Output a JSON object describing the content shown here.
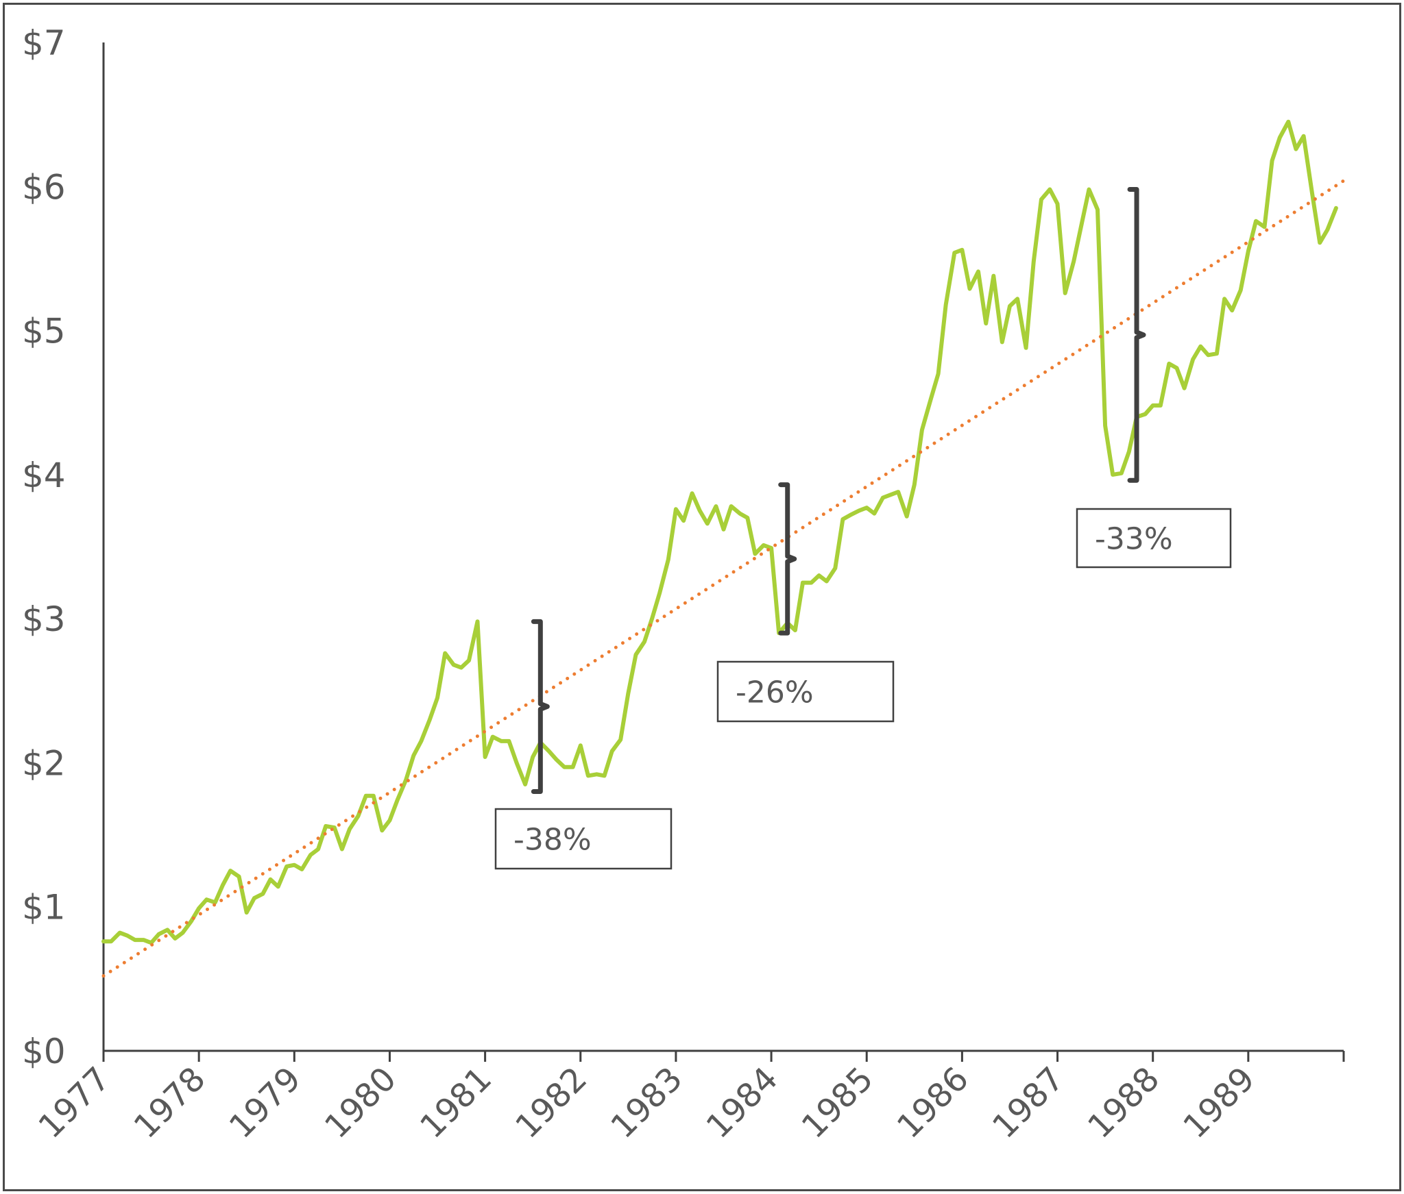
{
  "chart_data": {
    "type": "line",
    "title": "",
    "xlabel": "",
    "ylabel": "",
    "xlim": [
      1977.0,
      1990.0
    ],
    "ylim": [
      0,
      7
    ],
    "y_ticks": [
      "$0",
      "$1",
      "$2",
      "$3",
      "$4",
      "$5",
      "$6",
      "$7"
    ],
    "x_ticks": [
      "1977",
      "1978",
      "1979",
      "1980",
      "1981",
      "1982",
      "1983",
      "1984",
      "1985",
      "1986",
      "1987",
      "1988",
      "1989"
    ],
    "grid": false,
    "colors": {
      "price": "#a8cf38",
      "trend": "#ed7d31",
      "annotation": "#404040"
    },
    "series": [
      {
        "type": "line",
        "x": [
          1977.0,
          1977.08,
          1977.17,
          1977.25,
          1977.33,
          1977.42,
          1977.5,
          1977.58,
          1977.67,
          1977.75,
          1977.83,
          1977.92,
          1978.0,
          1978.08,
          1978.17,
          1978.25,
          1978.33,
          1978.42,
          1978.5,
          1978.58,
          1978.67,
          1978.75,
          1978.83,
          1978.92,
          1979.0,
          1979.08,
          1979.17,
          1979.25,
          1979.33,
          1979.42,
          1979.5,
          1979.58,
          1979.67,
          1979.75,
          1979.83,
          1979.92,
          1980.0,
          1980.08,
          1980.17,
          1980.25,
          1980.33,
          1980.42,
          1980.5,
          1980.58,
          1980.67,
          1980.75,
          1980.83,
          1980.92,
          1981.0,
          1981.08,
          1981.17,
          1981.25,
          1981.33,
          1981.42,
          1981.5,
          1981.58,
          1981.67,
          1981.75,
          1981.83,
          1981.92,
          1982.0,
          1982.08,
          1982.17,
          1982.25,
          1982.33,
          1982.42,
          1982.5,
          1982.58,
          1982.67,
          1982.75,
          1982.83,
          1982.92,
          1983.0,
          1983.08,
          1983.17,
          1983.25,
          1983.33,
          1983.42,
          1983.5,
          1983.58,
          1983.67,
          1983.75,
          1983.83,
          1983.92,
          1984.0,
          1984.08,
          1984.17,
          1984.25,
          1984.33,
          1984.42,
          1984.5,
          1984.58,
          1984.67,
          1984.75,
          1984.83,
          1984.92,
          1985.0,
          1985.08,
          1985.17,
          1985.25,
          1985.33,
          1985.42,
          1985.5,
          1985.58,
          1985.67,
          1985.75,
          1985.83,
          1985.92,
          1986.0,
          1986.08,
          1986.17,
          1986.25,
          1986.33,
          1986.42,
          1986.5,
          1986.58,
          1986.67,
          1986.75,
          1986.83,
          1986.92,
          1987.0,
          1987.08,
          1987.17,
          1987.25,
          1987.33,
          1987.42,
          1987.5,
          1987.58,
          1987.67,
          1987.75,
          1987.83,
          1987.92,
          1988.0,
          1988.08,
          1988.17,
          1988.25,
          1988.33,
          1988.42,
          1988.5,
          1988.58,
          1988.67,
          1988.75,
          1988.83,
          1988.92,
          1989.0,
          1989.08,
          1989.17,
          1989.25,
          1989.33,
          1989.42,
          1989.5,
          1989.58,
          1989.67,
          1989.75,
          1989.83,
          1989.92
        ],
        "y": [
          0.76,
          0.76,
          0.82,
          0.8,
          0.77,
          0.77,
          0.75,
          0.81,
          0.84,
          0.78,
          0.82,
          0.9,
          0.99,
          1.05,
          1.03,
          1.15,
          1.25,
          1.21,
          0.96,
          1.06,
          1.09,
          1.19,
          1.14,
          1.28,
          1.29,
          1.26,
          1.36,
          1.4,
          1.56,
          1.55,
          1.4,
          1.54,
          1.63,
          1.77,
          1.77,
          1.53,
          1.6,
          1.74,
          1.88,
          2.05,
          2.15,
          2.3,
          2.45,
          2.76,
          2.68,
          2.66,
          2.71,
          2.98,
          2.04,
          2.18,
          2.15,
          2.15,
          2.0,
          1.85,
          2.04,
          2.14,
          2.08,
          2.02,
          1.97,
          1.97,
          2.12,
          1.91,
          1.92,
          1.91,
          2.08,
          2.16,
          2.48,
          2.75,
          2.84,
          3.0,
          3.18,
          3.41,
          3.76,
          3.68,
          3.87,
          3.75,
          3.66,
          3.78,
          3.62,
          3.78,
          3.73,
          3.7,
          3.45,
          3.51,
          3.49,
          2.9,
          2.97,
          2.92,
          3.25,
          3.25,
          3.3,
          3.26,
          3.35,
          3.69,
          3.72,
          3.75,
          3.77,
          3.73,
          3.84,
          3.86,
          3.88,
          3.71,
          3.93,
          4.31,
          4.52,
          4.7,
          5.18,
          5.54,
          5.56,
          5.29,
          5.41,
          5.05,
          5.38,
          4.92,
          5.17,
          5.22,
          4.88,
          5.48,
          5.91,
          5.98,
          5.88,
          5.26,
          5.48,
          5.73,
          5.98,
          5.84,
          4.34,
          4.0,
          4.01,
          4.16,
          4.4,
          4.42,
          4.48,
          4.48,
          4.77,
          4.74,
          4.6,
          4.8,
          4.89,
          4.83,
          4.84,
          5.22,
          5.14,
          5.28,
          5.55,
          5.76,
          5.72,
          6.18,
          6.34,
          6.45,
          6.26,
          6.35,
          5.95,
          5.61,
          5.7,
          5.85
        ]
      },
      {
        "type": "line",
        "style": "dotted",
        "x": [
          1977.0,
          1990.0
        ],
        "y": [
          0.52,
          6.04
        ]
      }
    ],
    "annotations": [
      {
        "label": "-38%",
        "x": 1981.58,
        "y_top": 2.98,
        "y_bottom": 1.8
      },
      {
        "label": "-26%",
        "x": 1984.17,
        "y_top": 3.93,
        "y_bottom": 2.9
      },
      {
        "label": "-33%",
        "x": 1987.83,
        "y_top": 5.98,
        "y_bottom": 3.96
      }
    ]
  }
}
